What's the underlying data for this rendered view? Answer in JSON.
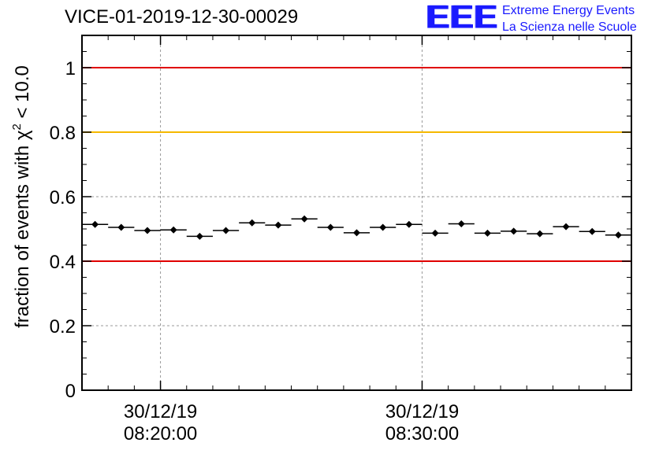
{
  "chart_data": {
    "type": "scatter",
    "title": "VICE-01-2019-12-30-00029",
    "ylabel": {
      "prefix": "fraction of events with",
      "symbol": "χ",
      "sup": "2",
      "suffix": "< 10.0"
    },
    "xlabel": "",
    "ylim": [
      0,
      1.1
    ],
    "yticks": [
      {
        "value": 0,
        "label": "0"
      },
      {
        "value": 0.2,
        "label": "0.2"
      },
      {
        "value": 0.4,
        "label": "0.4"
      },
      {
        "value": 0.6,
        "label": "0.6"
      },
      {
        "value": 0.8,
        "label": "0.8"
      },
      {
        "value": 1,
        "label": "1"
      }
    ],
    "xlim_minutes": [
      0,
      21
    ],
    "xticks": [
      {
        "minute": 3,
        "date": "30/12/19",
        "time": "08:20:00"
      },
      {
        "minute": 13,
        "date": "30/12/19",
        "time": "08:30:00"
      }
    ],
    "x_minor_step_minutes": 1,
    "reference_lines": [
      {
        "y": 1.0,
        "color": "#e00000"
      },
      {
        "y": 0.8,
        "color": "#f5b800"
      },
      {
        "y": 0.4,
        "color": "#e00000"
      }
    ],
    "grid": true,
    "series": [
      {
        "name": "fraction",
        "x_minutes": [
          0.5,
          1.5,
          2.5,
          3.5,
          4.5,
          5.5,
          6.5,
          7.5,
          8.5,
          9.5,
          10.5,
          11.5,
          12.5,
          13.5,
          14.5,
          15.5,
          16.5,
          17.5,
          18.5,
          19.5,
          20.5
        ],
        "x_halfwidth_minutes": 0.5,
        "values": [
          0.514,
          0.505,
          0.495,
          0.497,
          0.477,
          0.495,
          0.519,
          0.512,
          0.531,
          0.505,
          0.488,
          0.505,
          0.514,
          0.487,
          0.516,
          0.487,
          0.493,
          0.485,
          0.507,
          0.492,
          0.481
        ],
        "errors": [
          0.008,
          0.008,
          0.008,
          0.008,
          0.008,
          0.008,
          0.008,
          0.008,
          0.008,
          0.008,
          0.008,
          0.008,
          0.008,
          0.008,
          0.008,
          0.008,
          0.008,
          0.008,
          0.008,
          0.008,
          0.008
        ]
      }
    ]
  },
  "logo": {
    "mark": "EEE",
    "line1": "Extreme Energy Events",
    "line2": "La Scienza nelle Scuole"
  },
  "colors": {
    "marker": "#000000",
    "grid": "#9a9a9a",
    "logo": "#1a1aff"
  }
}
